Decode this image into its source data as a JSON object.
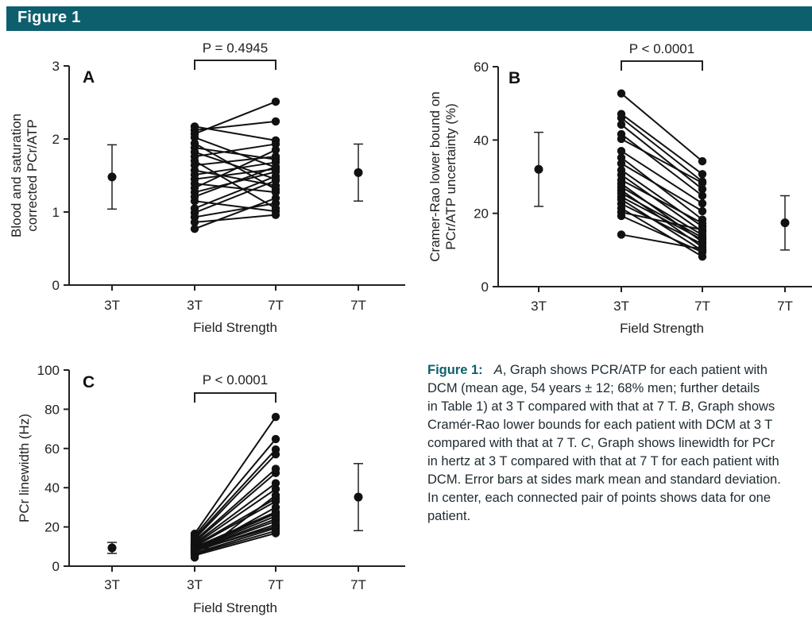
{
  "figure_label": "Figure 1",
  "chart_data": [
    {
      "panel": "A",
      "type": "scatter",
      "ylabel_lines": [
        "Blood and saturation",
        "corrected PCr/ATP"
      ],
      "xlabel": "Field Strength",
      "ylim": [
        0,
        3
      ],
      "yticks": [
        0,
        1,
        2,
        3
      ],
      "tick_labels": [
        "3T",
        "3T",
        "7T",
        "7T"
      ],
      "p_value": "P = 0.4945",
      "summary_3T": {
        "mean": 1.48,
        "sd": 0.44
      },
      "summary_7T": {
        "mean": 1.54,
        "sd": 0.39
      },
      "pairs": [
        [
          2.17,
          1.98
        ],
        [
          2.12,
          2.24
        ],
        [
          2.07,
          2.51
        ],
        [
          2.02,
          1.61
        ],
        [
          1.94,
          1.31
        ],
        [
          1.88,
          1.72
        ],
        [
          1.82,
          1.45
        ],
        [
          1.76,
          1.93
        ],
        [
          1.7,
          1.05
        ],
        [
          1.64,
          1.76
        ],
        [
          1.57,
          1.36
        ],
        [
          1.51,
          1.68
        ],
        [
          1.45,
          1.59
        ],
        [
          1.39,
          1.27
        ],
        [
          1.33,
          1.85
        ],
        [
          1.27,
          1.55
        ],
        [
          1.21,
          1.62
        ],
        [
          1.15,
          1.01
        ],
        [
          1.05,
          1.49
        ],
        [
          0.99,
          1.43
        ],
        [
          0.93,
          1.12
        ],
        [
          0.86,
          0.96
        ],
        [
          0.77,
          1.19
        ]
      ]
    },
    {
      "panel": "B",
      "type": "scatter",
      "ylabel_lines": [
        "Cramer-Rao lower bound on",
        "PCr/ATP uncertainty (%)"
      ],
      "xlabel": "Field Strength",
      "ylim": [
        0,
        60
      ],
      "yticks": [
        0,
        20,
        40,
        60
      ],
      "tick_labels": [
        "3T",
        "3T",
        "7T",
        "7T"
      ],
      "p_value": "P < 0.0001",
      "summary_3T": {
        "mean": 32.0,
        "sd": 10.1
      },
      "summary_7T": {
        "mean": 17.4,
        "sd": 7.4
      },
      "pairs": [
        [
          52.7,
          34.2
        ],
        [
          47.1,
          30.7
        ],
        [
          46.0,
          28.7
        ],
        [
          44.2,
          26.6
        ],
        [
          41.6,
          24.8
        ],
        [
          40.3,
          28.3
        ],
        [
          37.0,
          22.7
        ],
        [
          35.2,
          18.3
        ],
        [
          33.6,
          20.6
        ],
        [
          31.8,
          16.4
        ],
        [
          30.5,
          15.0
        ],
        [
          29.1,
          17.3
        ],
        [
          28.1,
          12.2
        ],
        [
          27.2,
          14.1
        ],
        [
          26.3,
          10.8
        ],
        [
          25.5,
          13.4
        ],
        [
          24.5,
          12.8
        ],
        [
          23.8,
          9.8
        ],
        [
          22.6,
          11.6
        ],
        [
          21.4,
          8.2
        ],
        [
          20.3,
          15.5
        ],
        [
          19.3,
          9.4
        ],
        [
          14.2,
          10.2
        ]
      ]
    },
    {
      "panel": "C",
      "type": "scatter",
      "ylabel_lines": [
        "PCr linewidth (Hz)"
      ],
      "xlabel": "Field Strength",
      "ylim": [
        0,
        100
      ],
      "yticks": [
        0,
        20,
        40,
        60,
        80,
        100
      ],
      "tick_labels": [
        "3T",
        "3T",
        "7T",
        "7T"
      ],
      "p_value": "P < 0.0001",
      "summary_3T": {
        "mean": 9.3,
        "sd": 2.8
      },
      "summary_7T": {
        "mean": 35.2,
        "sd": 17.1
      },
      "pairs": [
        [
          16.5,
          76.1
        ],
        [
          15.5,
          64.8
        ],
        [
          14.6,
          59.5
        ],
        [
          13.8,
          57.0
        ],
        [
          13.0,
          49.6
        ],
        [
          12.3,
          47.5
        ],
        [
          11.6,
          42.3
        ],
        [
          11.0,
          39.3
        ],
        [
          10.5,
          34.5
        ],
        [
          10.0,
          33.0
        ],
        [
          9.6,
          27.6
        ],
        [
          9.1,
          26.8
        ],
        [
          8.7,
          25.5
        ],
        [
          8.3,
          24.0
        ],
        [
          7.9,
          22.9
        ],
        [
          7.5,
          21.3
        ],
        [
          7.1,
          30.0
        ],
        [
          6.7,
          19.4
        ],
        [
          6.2,
          18.0
        ],
        [
          5.5,
          16.8
        ],
        [
          4.4,
          36.1
        ],
        [
          8.0,
          20.2
        ]
      ]
    }
  ],
  "caption": {
    "head": "Figure 1:",
    "lines": [
      [
        {
          "t": "A",
          "i": true
        },
        {
          "t": ", Graph shows PCR/ATP for each patient with"
        }
      ],
      [
        {
          "t": "DCM (mean age, 54 years ± 12; 68% men; further details"
        }
      ],
      [
        {
          "t": "in Table 1) at 3 T compared with that at 7 T. "
        },
        {
          "t": "B",
          "i": true
        },
        {
          "t": ", Graph shows"
        }
      ],
      [
        {
          "t": "Cramér-Rao lower bounds for each patient with DCM at 3 T"
        }
      ],
      [
        {
          "t": "compared with that at 7 T. "
        },
        {
          "t": "C",
          "i": true
        },
        {
          "t": ", Graph shows linewidth for PCr"
        }
      ],
      [
        {
          "t": "in hertz at 3 T compared with that at 7 T for each patient with"
        }
      ],
      [
        {
          "t": "DCM. Error bars at sides mark mean and standard deviation."
        }
      ],
      [
        {
          "t": "In center, each connected pair of points shows data for one"
        }
      ],
      [
        {
          "t": "patient."
        }
      ]
    ]
  }
}
